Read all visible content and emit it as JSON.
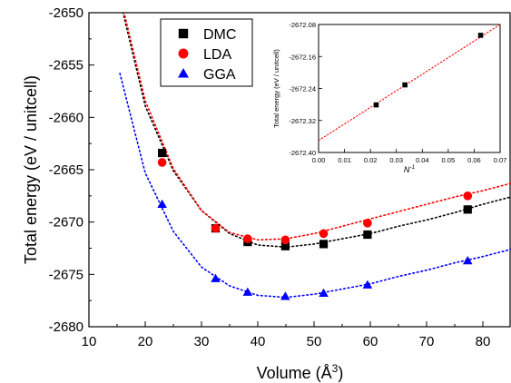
{
  "chart_data": [
    {
      "type": "scatter",
      "xlabel_main": "Volume (Å",
      "xlabel_sup": "3",
      "xlabel_end": ")",
      "ylabel": "Total energy (eV / unitcell)",
      "xlim": [
        10,
        85
      ],
      "ylim": [
        -2680,
        -2650
      ],
      "xticks": [
        10,
        20,
        30,
        40,
        50,
        60,
        70,
        80
      ],
      "yticks": [
        -2680,
        -2675,
        -2670,
        -2665,
        -2660,
        -2655,
        -2650
      ],
      "legend_position": "top-left",
      "series": [
        {
          "name": "DMC",
          "marker": "square",
          "color": "#000000",
          "points": [
            [
              23.0,
              -2663.4
            ],
            [
              32.5,
              -2670.6
            ],
            [
              38.2,
              -2671.9
            ],
            [
              44.9,
              -2672.3
            ],
            [
              51.7,
              -2672.1
            ],
            [
              59.5,
              -2671.2
            ],
            [
              77.3,
              -2668.8
            ]
          ],
          "fit": [
            [
              15.0,
              -2647.6
            ],
            [
              20.0,
              -2658.9
            ],
            [
              25.0,
              -2665.1
            ],
            [
              30.0,
              -2668.9
            ],
            [
              35.0,
              -2671.1
            ],
            [
              40.0,
              -2672.2
            ],
            [
              45.0,
              -2672.4
            ],
            [
              50.0,
              -2672.1
            ],
            [
              55.0,
              -2671.6
            ],
            [
              60.0,
              -2671.1
            ],
            [
              65.0,
              -2670.4
            ],
            [
              70.0,
              -2669.8
            ],
            [
              75.0,
              -2669.1
            ],
            [
              80.0,
              -2668.3
            ],
            [
              85.0,
              -2667.6
            ]
          ]
        },
        {
          "name": "LDA",
          "marker": "circle",
          "color": "#ff0000",
          "points": [
            [
              23.0,
              -2664.3
            ],
            [
              32.5,
              -2670.6
            ],
            [
              38.2,
              -2671.6
            ],
            [
              44.9,
              -2671.7
            ],
            [
              51.7,
              -2671.1
            ],
            [
              59.5,
              -2670.1
            ],
            [
              77.3,
              -2667.5
            ]
          ],
          "fit": [
            [
              15.0,
              -2647.2
            ],
            [
              20.0,
              -2658.4
            ],
            [
              25.0,
              -2664.9
            ],
            [
              30.0,
              -2668.9
            ],
            [
              35.0,
              -2671.0
            ],
            [
              40.0,
              -2671.7
            ],
            [
              45.0,
              -2671.6
            ],
            [
              50.0,
              -2671.1
            ],
            [
              55.0,
              -2670.4
            ],
            [
              60.0,
              -2669.7
            ],
            [
              65.0,
              -2669.0
            ],
            [
              70.0,
              -2668.3
            ],
            [
              75.0,
              -2667.6
            ],
            [
              80.0,
              -2667.0
            ],
            [
              85.0,
              -2666.3
            ]
          ]
        },
        {
          "name": "GGA",
          "marker": "triangle",
          "color": "#0000ff",
          "points": [
            [
              23.0,
              -2668.3
            ],
            [
              32.5,
              -2675.4
            ],
            [
              38.2,
              -2676.7
            ],
            [
              44.9,
              -2677.1
            ],
            [
              51.7,
              -2676.8
            ],
            [
              59.5,
              -2676.0
            ],
            [
              77.3,
              -2673.7
            ]
          ],
          "fit": [
            [
              15.5,
              -2655.8
            ],
            [
              20.0,
              -2665.3
            ],
            [
              25.0,
              -2670.9
            ],
            [
              30.0,
              -2674.3
            ],
            [
              35.0,
              -2676.1
            ],
            [
              40.0,
              -2677.0
            ],
            [
              45.0,
              -2677.2
            ],
            [
              50.0,
              -2676.9
            ],
            [
              55.0,
              -2676.4
            ],
            [
              60.0,
              -2675.9
            ],
            [
              65.0,
              -2675.2
            ],
            [
              70.0,
              -2674.6
            ],
            [
              75.0,
              -2673.9
            ],
            [
              80.0,
              -2673.3
            ],
            [
              85.0,
              -2672.6
            ]
          ]
        }
      ]
    },
    {
      "type": "scatter",
      "xlabel_main": "N",
      "xlabel_sup": "-1",
      "ylabel": "Total energy (eV / unitcell)",
      "xlim": [
        0.0,
        0.07
      ],
      "ylim": [
        -2672.4,
        -2672.08
      ],
      "xticks": [
        "0.00",
        "0.01",
        "0.02",
        "0.03",
        "0.04",
        "0.05",
        "0.06",
        "0.07"
      ],
      "yticks": [
        "-2672.40",
        "-2672.32",
        "-2672.24",
        "-2672.16",
        "-2672.08"
      ],
      "series": [
        {
          "marker": "square",
          "color": "#000000",
          "points": [
            [
              0.0222,
              -2672.281
            ],
            [
              0.0333,
              -2672.231
            ],
            [
              0.0625,
              -2672.107
            ]
          ],
          "fit": [
            [
              0.0,
              -2672.37
            ],
            [
              0.07,
              -2672.08
            ]
          ]
        }
      ]
    }
  ]
}
